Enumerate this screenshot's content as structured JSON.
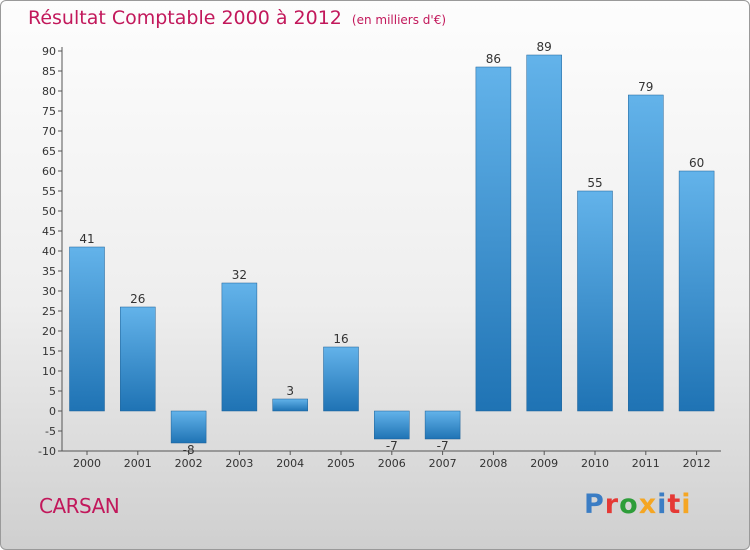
{
  "header": {
    "title": "Résultat Comptable 2000 à 2012",
    "unit": "(en milliers d'€)"
  },
  "footer": {
    "commune": "CARSAN",
    "logo_text": "Proxiti",
    "logo_letter_colors": [
      "#3b7dc4",
      "#e53935",
      "#2e9d3a",
      "#f5a623",
      "#3b7dc4",
      "#e53935",
      "#f5a623"
    ]
  },
  "colors": {
    "bar_top": "#63b3ea",
    "bar_bottom": "#1f73b4",
    "title": "#c2185b"
  },
  "chart_data": {
    "type": "bar",
    "title": "Résultat Comptable 2000 à 2012",
    "subtitle": "(en milliers d'€)",
    "xlabel": "",
    "ylabel": "",
    "categories": [
      "2000",
      "2001",
      "2002",
      "2003",
      "2004",
      "2005",
      "2006",
      "2007",
      "2008",
      "2009",
      "2010",
      "2011",
      "2012"
    ],
    "values": [
      41,
      26,
      -8,
      32,
      3,
      16,
      -7,
      -7,
      86,
      89,
      55,
      79,
      60
    ],
    "data_labels": [
      "41",
      "26",
      "-8",
      "32",
      "3",
      "16",
      "-7",
      "-7",
      "86",
      "89",
      "55",
      "79",
      "60"
    ],
    "ylim": [
      -10,
      90
    ],
    "yticks": [
      -10,
      -5,
      0,
      5,
      10,
      15,
      20,
      25,
      30,
      35,
      40,
      45,
      50,
      55,
      60,
      65,
      70,
      75,
      80,
      85,
      90
    ],
    "grid": false,
    "legend": "none"
  }
}
